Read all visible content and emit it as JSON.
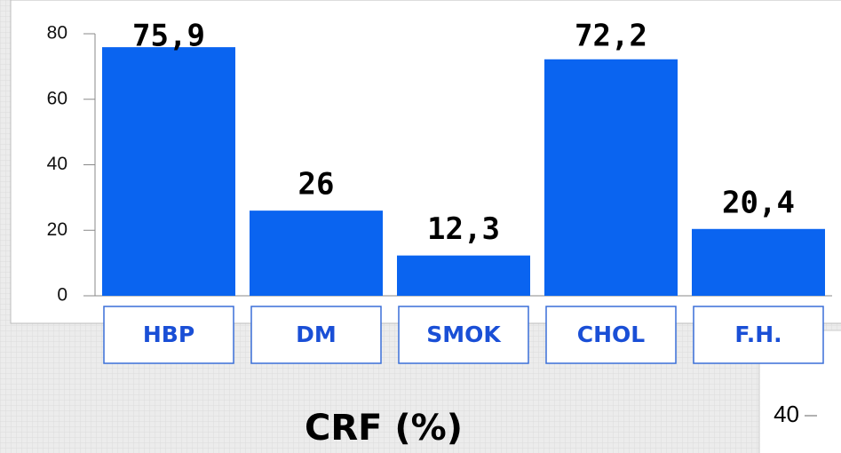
{
  "chart_data": {
    "type": "bar",
    "title": "CRF (%)",
    "categories": [
      "HBP",
      "DM",
      "SMOK",
      "CHOL",
      "F.H."
    ],
    "values": [
      75.9,
      26,
      12.3,
      72.2,
      20.4
    ],
    "value_labels": [
      "75,9",
      "26",
      "12,3",
      "72,2",
      "20,4"
    ],
    "color": "#0a64f0",
    "ylim": [
      0,
      80
    ],
    "yticks": [
      0,
      20,
      40,
      60,
      80
    ],
    "grid": false
  },
  "side_fragment": {
    "label": "40"
  }
}
